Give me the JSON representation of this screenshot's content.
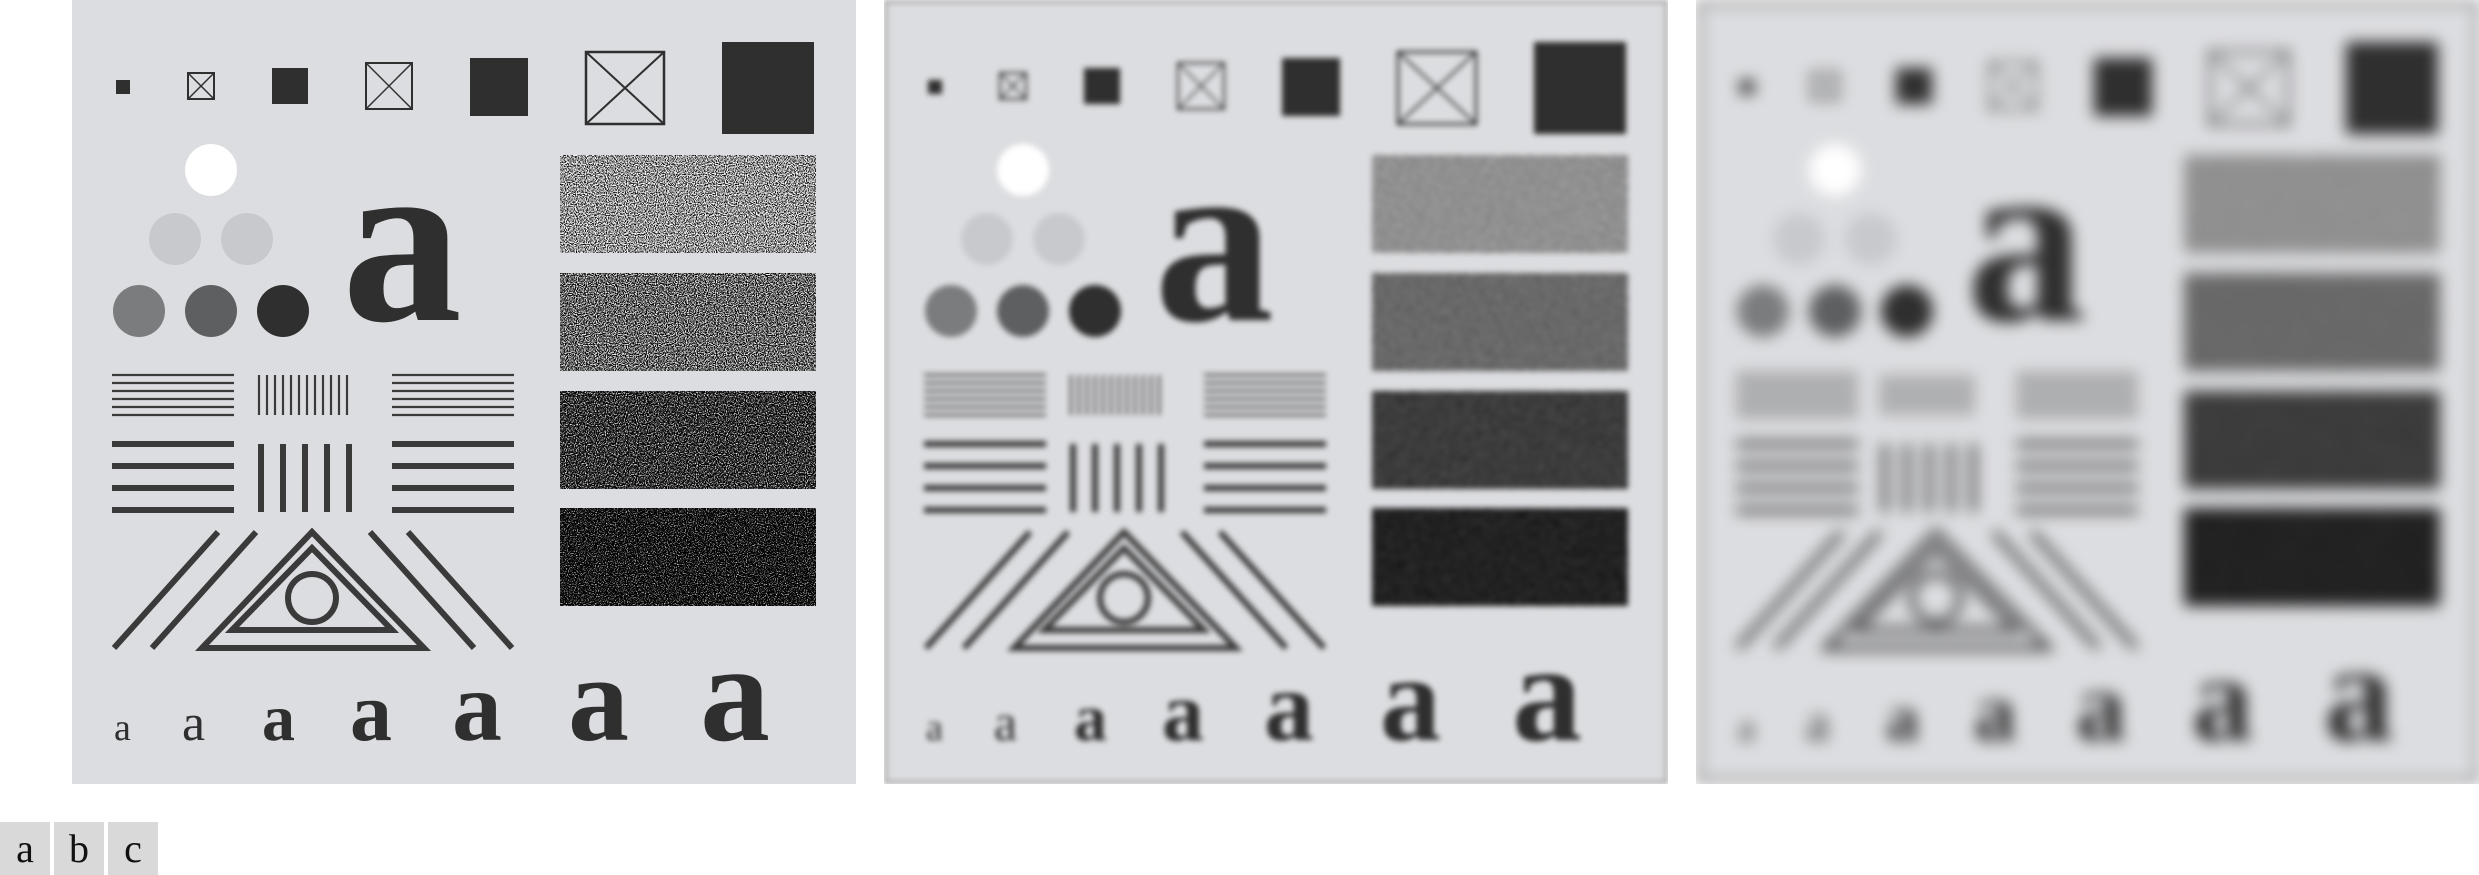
{
  "figure": {
    "panels": [
      {
        "id": "a",
        "label": "a",
        "filter": "original"
      },
      {
        "id": "b",
        "label": "b",
        "filter": "smoothed"
      },
      {
        "id": "c",
        "label": "c",
        "filter": "heavily smoothed"
      }
    ],
    "test_pattern": {
      "big_letter": "a",
      "letter_row": [
        "a",
        "a",
        "a",
        "a",
        "a",
        "a",
        "a"
      ]
    },
    "colors": {
      "background": "#dcdde0",
      "dark": "#2f2f2f",
      "white": "#ffffff",
      "gray_light": "#c8c9cd",
      "gray_mid": "#7b7c7e",
      "gray_dark": "#5e5f61"
    }
  }
}
